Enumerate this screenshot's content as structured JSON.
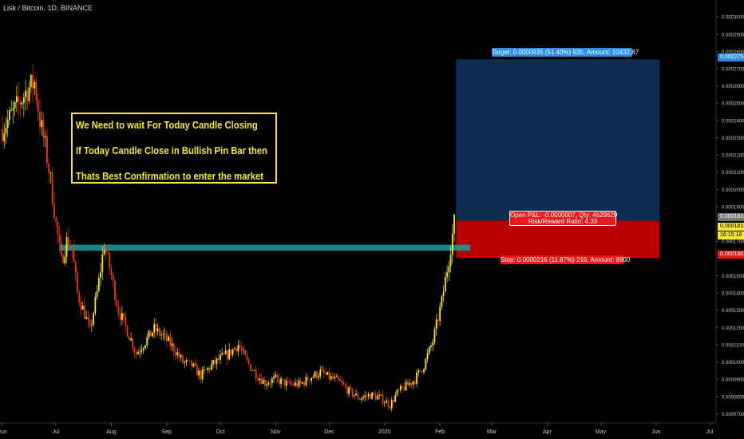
{
  "symbol_title": "Lisk / Bitcoin, 1D, BINANCE",
  "annotation": {
    "line1": "We Need to wait For Today Candle Closing",
    "line2": "If Today Candle Close in Bullish Pin Bar then",
    "line3": "Thats Best Confirmation to enter the market"
  },
  "position": {
    "target_label": "Target: 0.0000935 (51.40%) 935, Amount: 10432.87",
    "stop_label": "Stop: 0.0000216 (11.87%) 216, Amount: 9900",
    "pnl_line1": "Open P&L: -0.0000007, Qty: 4629629",
    "pnl_line2": "Risk/Reward Ratio: 4.33",
    "entry": 0.0001819,
    "target": 0.0002754,
    "stop": 0.0001603,
    "start_date": "2020-02-10",
    "end_date": "2020-06-03"
  },
  "price_tags": {
    "target": "0.0002754",
    "entry": "0.0001819",
    "current": "0.0001812",
    "countdown": "16:15:18",
    "stop": "0.0001603"
  },
  "colors": {
    "up_candle": "#f5e63a",
    "down_candle": "#e53a1a",
    "support_zone": "#1a9e9e",
    "target_zone": "#0c2d4f",
    "stop_zone": "#b80000",
    "note_text": "#f5ea3a",
    "target_label": "#2e8ee6",
    "stop_label": "#e81a1a"
  },
  "chart_data": {
    "type": "candlestick",
    "title": "Lisk / Bitcoin, 1D, BINANCE",
    "x_range": [
      "2019-06-01",
      "2020-07-01"
    ],
    "ylim": [
      6.65e-05,
      0.000307
    ],
    "y_ticks": [
      "0.0003000",
      "0.0002900",
      "0.0002800",
      "0.0002700",
      "0.0002600",
      "0.0002500",
      "0.0002400",
      "0.0002300",
      "0.0002200",
      "0.0002100",
      "0.0002000",
      "0.0001900",
      "0.0001700",
      "0.0001500",
      "0.0001400",
      "0.0001300",
      "0.0001200",
      "0.0001100",
      "0.0001000",
      "0.0000900",
      "0.0000800",
      "0.0000700"
    ],
    "x_ticks": [
      "Jun",
      "Jul",
      "Aug",
      "Sep",
      "Oct",
      "Nov",
      "Dec",
      "2020",
      "Feb",
      "Mar",
      "Apr",
      "May",
      "Jun",
      "Jul"
    ],
    "support_zone": {
      "from": 0.0001645,
      "to": 0.000168,
      "start": "2019-07-03",
      "end": "2020-02-18"
    },
    "closes": [
      [
        "2019-06-01",
        0.000235
      ],
      [
        "2019-06-08",
        0.000246
      ],
      [
        "2019-06-15",
        0.000258
      ],
      [
        "2019-06-19",
        0.000262
      ],
      [
        "2019-06-22",
        0.00024
      ],
      [
        "2019-06-25",
        0.000225
      ],
      [
        "2019-06-28",
        0.000205
      ],
      [
        "2019-07-01",
        0.00018
      ],
      [
        "2019-07-04",
        0.000158
      ],
      [
        "2019-07-07",
        0.00017
      ],
      [
        "2019-07-10",
        0.000165
      ],
      [
        "2019-07-13",
        0.00014
      ],
      [
        "2019-07-17",
        0.000128
      ],
      [
        "2019-07-20",
        0.000118
      ],
      [
        "2019-07-24",
        0.00014
      ],
      [
        "2019-07-28",
        0.000168
      ],
      [
        "2019-08-01",
        0.00015
      ],
      [
        "2019-08-05",
        0.00013
      ],
      [
        "2019-08-10",
        0.000118
      ],
      [
        "2019-08-15",
        0.000105
      ],
      [
        "2019-08-20",
        0.000112
      ],
      [
        "2019-08-25",
        0.000119
      ],
      [
        "2019-08-30",
        0.000115
      ],
      [
        "2019-09-05",
        0.000108
      ],
      [
        "2019-09-10",
        0.0001
      ],
      [
        "2019-09-15",
        9.8e-05
      ],
      [
        "2019-09-20",
        9.2e-05
      ],
      [
        "2019-09-25",
        9.7e-05
      ],
      [
        "2019-10-01",
        0.000102
      ],
      [
        "2019-10-06",
        0.000105
      ],
      [
        "2019-10-11",
        0.00011
      ],
      [
        "2019-10-16",
        0.0001
      ],
      [
        "2019-10-21",
        9.3e-05
      ],
      [
        "2019-10-26",
        8.8e-05
      ],
      [
        "2019-11-01",
        9e-05
      ],
      [
        "2019-11-08",
        8.7e-05
      ],
      [
        "2019-11-15",
        8.7e-05
      ],
      [
        "2019-11-20",
        9.1e-05
      ],
      [
        "2019-11-26",
        9.4e-05
      ],
      [
        "2019-12-01",
        9.1e-05
      ],
      [
        "2019-12-06",
        8.9e-05
      ],
      [
        "2019-12-12",
        8.3e-05
      ],
      [
        "2019-12-18",
        7.9e-05
      ],
      [
        "2019-12-24",
        8.1e-05
      ],
      [
        "2019-12-30",
        7.9e-05
      ],
      [
        "2020-01-04",
        7.5e-05
      ],
      [
        "2020-01-08",
        8.2e-05
      ],
      [
        "2020-01-13",
        8.6e-05
      ],
      [
        "2020-01-18",
        9e-05
      ],
      [
        "2020-01-23",
        9.8e-05
      ],
      [
        "2020-01-28",
        0.000112
      ],
      [
        "2020-02-02",
        0.000135
      ],
      [
        "2020-02-06",
        0.00016
      ],
      [
        "2020-02-09",
        0.000181
      ]
    ]
  }
}
